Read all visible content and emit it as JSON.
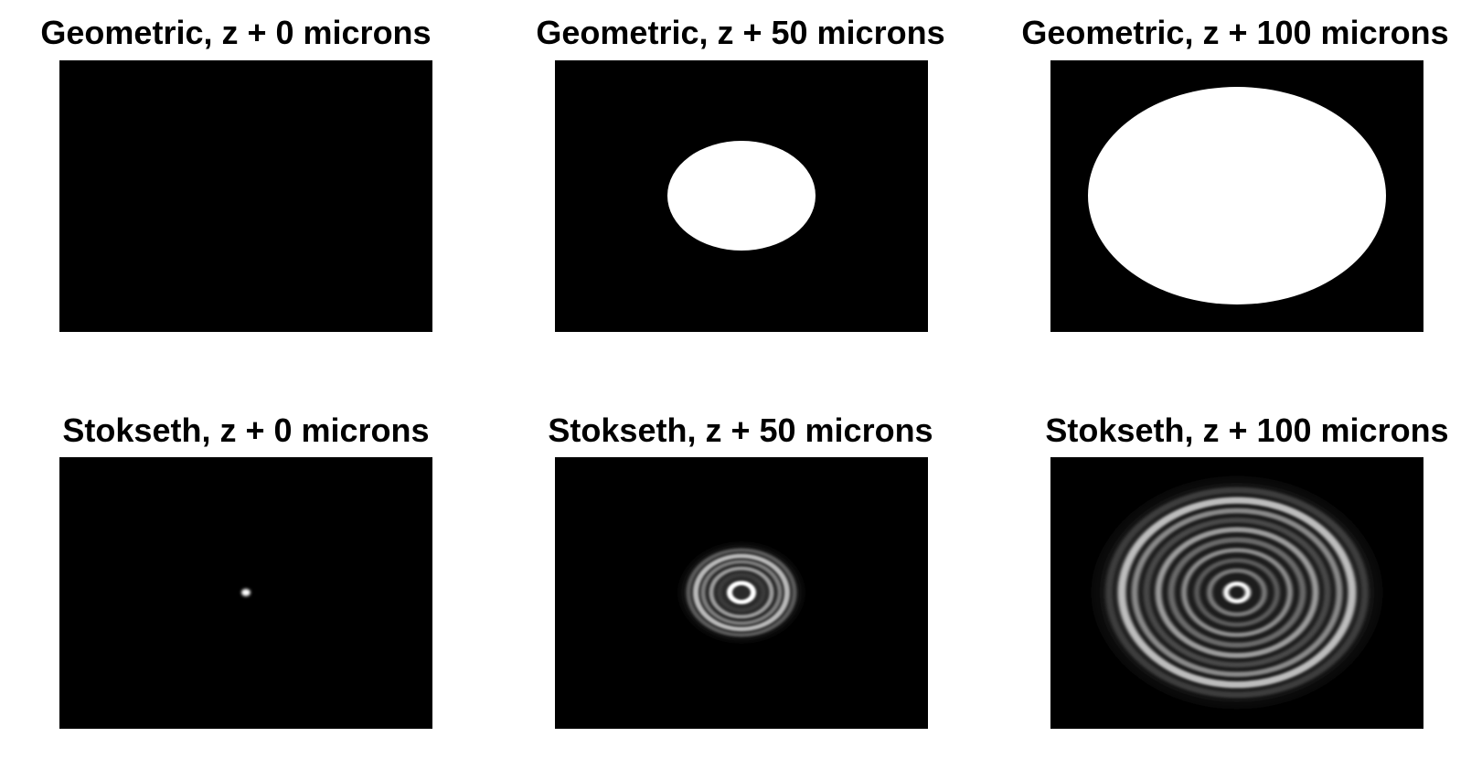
{
  "panels": [
    {
      "title": "Geometric, z + 0 microns",
      "model": "geometric",
      "defocus_microns": 0,
      "background_color": "#000000",
      "spot_color": "#ffffff"
    },
    {
      "title": "Geometric, z + 50 microns",
      "model": "geometric",
      "defocus_microns": 50,
      "background_color": "#000000",
      "spot_color": "#ffffff"
    },
    {
      "title": "Geometric, z + 100 microns",
      "model": "geometric",
      "defocus_microns": 100,
      "background_color": "#000000",
      "spot_color": "#ffffff"
    },
    {
      "title": "Stokseth, z + 0 microns",
      "model": "stokseth",
      "defocus_microns": 0,
      "background_color": "#000000",
      "spot_color": "#ffffff"
    },
    {
      "title": "Stokseth, z + 50 microns",
      "model": "stokseth",
      "defocus_microns": 50,
      "background_color": "#000000",
      "spot_color": "#ffffff"
    },
    {
      "title": "Stokseth, z + 100 microns",
      "model": "stokseth",
      "defocus_microns": 100,
      "background_color": "#000000",
      "spot_color": "#ffffff"
    }
  ]
}
